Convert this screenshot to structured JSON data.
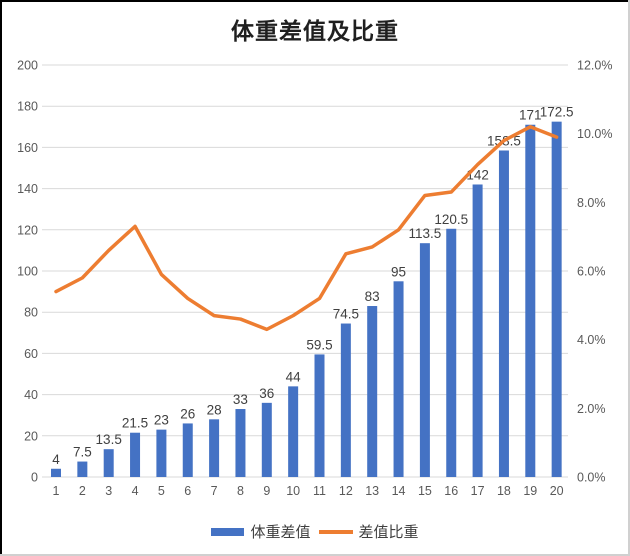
{
  "title": "体重差值及比重",
  "colors": {
    "bar": "#4472C4",
    "line": "#ED7D31",
    "grid": "#D9D9D9",
    "tick_text": "#595959",
    "data_label": "#404040",
    "title_text": "#1F1F1F",
    "frame_dark": "#000000",
    "frame_light": "#D0D0D0",
    "background": "#FFFFFF"
  },
  "chart_data": {
    "type": "combo",
    "title": "体重差值及比重",
    "categories": [
      "1",
      "2",
      "3",
      "4",
      "5",
      "6",
      "7",
      "8",
      "9",
      "10",
      "11",
      "12",
      "13",
      "14",
      "15",
      "16",
      "17",
      "18",
      "19",
      "20"
    ],
    "series": [
      {
        "name": "体重差值",
        "chart_type": "bar",
        "axis": "left",
        "color": "#4472C4",
        "data_labels_shown": true,
        "values": [
          4,
          7.5,
          13.5,
          21.5,
          23,
          26,
          28,
          33,
          36,
          44,
          59.5,
          74.5,
          83,
          95,
          113.5,
          120.5,
          142,
          158.5,
          171,
          172.5
        ]
      },
      {
        "name": "差值比重",
        "chart_type": "line",
        "axis": "right",
        "color": "#ED7D31",
        "data_labels_shown": false,
        "values_percent": [
          5.4,
          5.8,
          6.6,
          7.3,
          5.9,
          5.2,
          4.7,
          4.6,
          4.3,
          4.7,
          5.2,
          6.5,
          6.7,
          7.2,
          8.2,
          8.3,
          9.1,
          9.8,
          10.2,
          9.9
        ]
      }
    ],
    "left_axis": {
      "min": 0,
      "max": 200,
      "step": 20,
      "tick_labels": [
        "200",
        "180",
        "160",
        "140",
        "120",
        "100",
        "80",
        "60",
        "40",
        "20",
        "0"
      ]
    },
    "right_axis": {
      "min": 0,
      "max": 12,
      "step": 2,
      "tick_labels": [
        "12.0%",
        "10.0%",
        "8.0%",
        "6.0%",
        "4.0%",
        "2.0%",
        "0.0%"
      ]
    },
    "grid": true,
    "legend_position": "bottom"
  }
}
